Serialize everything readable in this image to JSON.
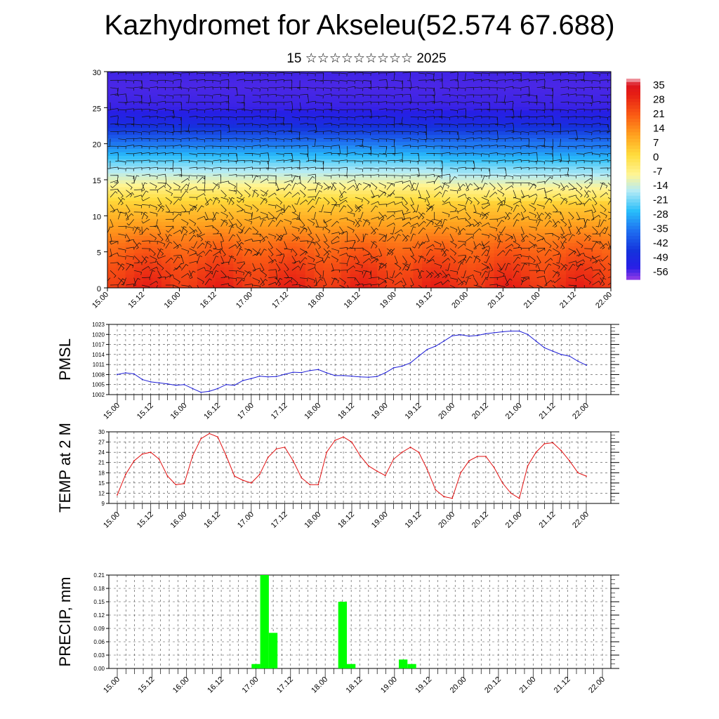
{
  "header": {
    "title": "Kazhydromet for Akseleu(52.574 67.688)",
    "subtitle": "15 ☆☆☆☆☆☆☆☆☆ 2025"
  },
  "time_labels": [
    "15.00",
    "15.12",
    "16.00",
    "16.12",
    "17.00",
    "17.12",
    "18.00",
    "18.12",
    "19.00",
    "19.12",
    "20.00",
    "20.12",
    "21.00",
    "21.12",
    "22.00"
  ],
  "colors": {
    "pmsl_line": "#1f1fd6",
    "temp_line": "#e01010",
    "precip_bar": "#00ff00"
  },
  "chart_data": [
    {
      "type": "heatmap",
      "ylim": [
        0,
        30
      ],
      "y_ticks": [
        0,
        5,
        10,
        15,
        20,
        25,
        30
      ],
      "colorbar_labels": [
        "35",
        "28",
        "21",
        "14",
        "7",
        "0",
        "-7",
        "-14",
        "-21",
        "-28",
        "-35",
        "-42",
        "-49",
        "-56"
      ],
      "colorbar_range": [
        -60,
        38
      ],
      "profile_levels": [
        0,
        3,
        6,
        9,
        12,
        15,
        17,
        19,
        21,
        23,
        25,
        28,
        31
      ],
      "profile_values": [
        28,
        24,
        18,
        10,
        2,
        -12,
        -20,
        -30,
        -40,
        -50,
        -55,
        -56,
        -55
      ],
      "overlay": "wind barbs"
    },
    {
      "type": "line",
      "ylabel": "PMSL",
      "ylim": [
        1002,
        1023
      ],
      "y_ticks": [
        1002,
        1005,
        1008,
        1011,
        1014,
        1017,
        1020,
        1023
      ],
      "x": [
        0,
        1,
        2,
        3,
        4,
        5,
        6,
        7,
        8,
        9,
        10,
        11,
        12,
        13,
        14,
        15,
        16,
        17,
        18,
        19,
        20,
        21,
        22,
        23,
        24,
        25,
        26,
        27,
        28,
        29,
        30,
        31,
        32,
        33,
        34,
        35,
        36,
        37,
        38,
        39,
        40,
        41,
        42,
        43,
        44,
        45,
        46,
        47,
        48,
        49,
        50,
        51,
        52,
        53,
        54,
        55,
        56
      ],
      "values": [
        1008,
        1008.5,
        1008.2,
        1006.5,
        1005.8,
        1005.5,
        1005.2,
        1004.8,
        1005,
        1003.8,
        1002.7,
        1003,
        1003.8,
        1005,
        1004.8,
        1006.2,
        1006.8,
        1007.5,
        1007.3,
        1007.4,
        1008.1,
        1008.7,
        1008.6,
        1009.2,
        1009.5,
        1008.5,
        1007.7,
        1007.7,
        1007.5,
        1007.3,
        1007.2,
        1007.4,
        1008.5,
        1010,
        1010.5,
        1011.5,
        1013.5,
        1015.5,
        1016.5,
        1018,
        1019.6,
        1019.9,
        1019.5,
        1019.7,
        1020.2,
        1020.5,
        1020.8,
        1021,
        1021,
        1020,
        1018,
        1016,
        1015,
        1014,
        1013.5,
        1012,
        1010.8
      ]
    },
    {
      "type": "line",
      "ylabel": "TEMP at 2 M",
      "ylim": [
        9,
        30
      ],
      "y_ticks": [
        9,
        12,
        15,
        18,
        21,
        24,
        27,
        30
      ],
      "x": [
        0,
        1,
        2,
        3,
        4,
        5,
        6,
        7,
        8,
        9,
        10,
        11,
        12,
        13,
        14,
        15,
        16,
        17,
        18,
        19,
        20,
        21,
        22,
        23,
        24,
        25,
        26,
        27,
        28,
        29,
        30,
        31,
        32,
        33,
        34,
        35,
        36,
        37,
        38,
        39,
        40,
        41,
        42,
        43,
        44,
        45,
        46,
        47,
        48,
        49,
        50,
        51,
        52,
        53,
        54,
        55,
        56
      ],
      "values": [
        11.5,
        17.5,
        21.5,
        23.5,
        24,
        22,
        17,
        14.5,
        14.8,
        23,
        28,
        29.5,
        28.5,
        23,
        17,
        15.8,
        15,
        17.5,
        22.5,
        25,
        25.5,
        21.5,
        16.5,
        14.5,
        14.5,
        24,
        27.5,
        28.5,
        27,
        23,
        20,
        18.5,
        17.2,
        22,
        24,
        25.5,
        24,
        19,
        13,
        11,
        10.5,
        18,
        21.5,
        22.8,
        22.8,
        19.5,
        15,
        12,
        10.5,
        20,
        24,
        26.5,
        26.8,
        24.5,
        21.5,
        18,
        17
      ]
    },
    {
      "type": "bar",
      "ylabel": "PRECIP, mm",
      "ylim": [
        0,
        0.21
      ],
      "y_ticks": [
        "0.00",
        "0.03",
        "0.06",
        "0.09",
        "0.12",
        "0.15",
        "0.18",
        "0.21"
      ],
      "x": [
        16,
        17,
        18,
        26,
        27,
        33,
        34
      ],
      "values": [
        0.01,
        0.21,
        0.08,
        0.15,
        0.01,
        0.02,
        0.01
      ]
    }
  ]
}
